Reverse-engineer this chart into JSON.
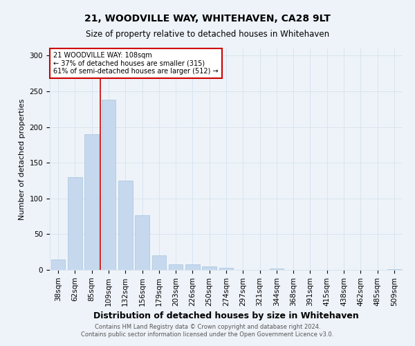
{
  "title1": "21, WOODVILLE WAY, WHITEHAVEN, CA28 9LT",
  "title2": "Size of property relative to detached houses in Whitehaven",
  "xlabel": "Distribution of detached houses by size in Whitehaven",
  "ylabel": "Number of detached properties",
  "footer1": "Contains HM Land Registry data © Crown copyright and database right 2024.",
  "footer2": "Contains public sector information licensed under the Open Government Licence v3.0.",
  "annotation_line1": "21 WOODVILLE WAY: 108sqm",
  "annotation_line2": "← 37% of detached houses are smaller (315)",
  "annotation_line3": "61% of semi-detached houses are larger (512) →",
  "bar_categories": [
    "38sqm",
    "62sqm",
    "85sqm",
    "109sqm",
    "132sqm",
    "156sqm",
    "179sqm",
    "203sqm",
    "226sqm",
    "250sqm",
    "274sqm",
    "297sqm",
    "321sqm",
    "344sqm",
    "368sqm",
    "391sqm",
    "415sqm",
    "438sqm",
    "462sqm",
    "485sqm",
    "509sqm"
  ],
  "bar_values": [
    15,
    130,
    190,
    238,
    125,
    77,
    20,
    8,
    8,
    5,
    3,
    0,
    0,
    2,
    0,
    0,
    0,
    0,
    0,
    0,
    1
  ],
  "bar_color": "#c5d8ed",
  "bar_edge_color": "#a8c4dc",
  "vline_x_index": 3,
  "vline_color": "#cc0000",
  "annotation_box_color": "#ffffff",
  "annotation_box_edge": "#cc0000",
  "grid_color": "#d8e4f0",
  "bg_color": "#eef3f9",
  "ylim": [
    0,
    310
  ],
  "yticks": [
    0,
    50,
    100,
    150,
    200,
    250,
    300
  ],
  "title1_fontsize": 10,
  "title2_fontsize": 8.5,
  "xlabel_fontsize": 9,
  "ylabel_fontsize": 8,
  "tick_fontsize": 7.5,
  "footer_fontsize": 6,
  "annotation_fontsize": 7
}
